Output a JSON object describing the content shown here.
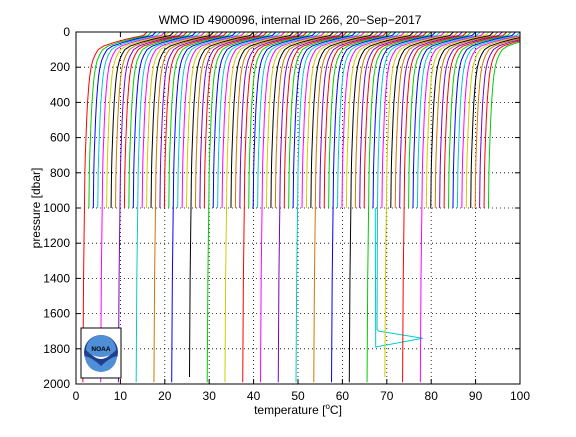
{
  "chart_data": {
    "type": "line",
    "title": "WMO ID 4900096, internal ID 266, 20−Sep−2017",
    "xlabel_main": "temperature [",
    "xlabel_sup": "o",
    "xlabel_tail": "C]",
    "ylabel": "pressure [dbar]",
    "xlim": [
      0,
      100
    ],
    "ylim": [
      0,
      2000
    ],
    "y_reversed": true,
    "grid": true,
    "grid_style": "dotted",
    "x_ticks": [
      "0",
      "10",
      "20",
      "30",
      "40",
      "50",
      "60",
      "70",
      "80",
      "90",
      "100"
    ],
    "y_ticks": [
      "0",
      "200",
      "400",
      "600",
      "800",
      "1000",
      "1200",
      "1400",
      "1600",
      "1800",
      "2000"
    ],
    "profile_count": 92,
    "shallow_profile_count": 72,
    "deep_profile_count": 20,
    "profile_offset_step_degC": 1,
    "first_profile_offset_degC": 2,
    "deep_profile_every": 4,
    "deep_end_pressures_dbar": [
      1990,
      1990,
      1990,
      1990,
      1990,
      1990,
      1960,
      1990,
      1990,
      1990,
      1990,
      1990,
      1990,
      1990,
      1990,
      1990,
      1990,
      1960,
      1990,
      1990
    ],
    "base_profile": {
      "pressure_dbar": [
        0,
        20,
        40,
        60,
        80,
        100,
        130,
        160,
        200,
        250,
        300,
        400,
        500,
        600,
        700,
        800,
        900,
        1000,
        1200,
        1400,
        1600,
        1800,
        2000
      ],
      "temperature_degC": [
        14.0,
        13.2,
        9.5,
        6.5,
        4.2,
        3.0,
        2.3,
        1.8,
        1.4,
        1.1,
        0.9,
        0.6,
        0.4,
        0.25,
        0.1,
        0.0,
        -0.05,
        -0.1,
        -0.2,
        -0.3,
        -0.35,
        -0.4,
        -0.45
      ]
    },
    "anomaly": {
      "profile_number": 67,
      "pressure_dbar": [
        1690,
        1700,
        1740,
        1790
      ],
      "temperature_degC": [
        67.8,
        68.2,
        78.1,
        67.5
      ]
    },
    "colors": [
      "#ff0000",
      "#00cc00",
      "#0000ff",
      "#00cccc",
      "#ff00ff",
      "#cccc00",
      "#000000",
      "#cc7700",
      "#7700cc"
    ],
    "logo": {
      "text": "NOAA",
      "colors": {
        "dark_blue": "#1f3f8f",
        "light_blue": "#4f8fd6",
        "white": "#ffffff"
      }
    }
  }
}
